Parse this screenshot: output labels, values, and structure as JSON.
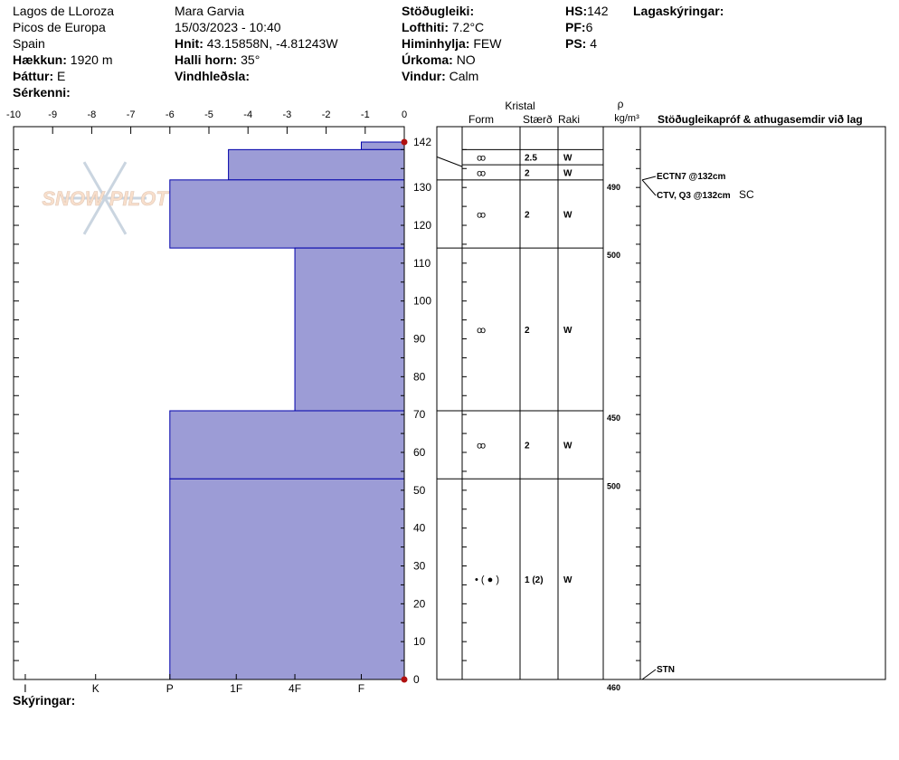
{
  "header": {
    "location": "Lagos de  LLoroza",
    "region": "Picos de Europa",
    "country": "Spain",
    "elevation_label": "Hækkun:",
    "elevation_value": "1920 m",
    "aspect_label": "Þáttur:",
    "aspect_value": "E",
    "features_label": "Sérkenni:",
    "observer": "Mara Garvia",
    "datetime": "15/03/2023 - 10:40",
    "coords_label": "Hnit:",
    "coords_value": "43.15858N, -4.81243W",
    "slope_label": "Halli horn:",
    "slope_value": "35°",
    "wind_loading_label": "Vindhleðsla:",
    "stability_label": "Stöðugleiki:",
    "air_temp_label": "Lofthiti:",
    "air_temp_value": "7.2°C",
    "sky_label": "Himinhylja:",
    "sky_value": "FEW",
    "precip_label": "Úrkoma:",
    "precip_value": "NO",
    "wind_label": "Vindur:",
    "wind_value": "Calm",
    "hs_label": "HS:",
    "hs_value": "142",
    "pf_label": "PF:",
    "pf_value": "6",
    "ps_label": "PS:",
    "ps_value": "4",
    "layer_notes_label": "Lagaskýringar:"
  },
  "footer": {
    "legend_label": "Skýringar:"
  },
  "watermark": "SNOW PILOT",
  "colors": {
    "fill": "#9c9cd6",
    "edge": "#0000aa",
    "marker": "#b01010"
  },
  "chart_data": {
    "type": "bar",
    "hardness_axis": {
      "ticks": [
        "-10",
        "-9",
        "-8",
        "-7",
        "-6",
        "-5",
        "-4",
        "-3",
        "-2",
        "-1",
        "0"
      ],
      "categories": [
        "I",
        "K",
        "P",
        "1F",
        "4F",
        "F"
      ]
    },
    "depth_axis": {
      "ticks": [
        "0",
        "10",
        "20",
        "30",
        "40",
        "50",
        "60",
        "70",
        "80",
        "90",
        "100",
        "110",
        "120",
        "130",
        "140"
      ],
      "top_label": "142",
      "range": [
        0,
        142
      ]
    },
    "hand_hardness_profile": [
      {
        "top": 142,
        "bottom": 140,
        "hardness": -1.1
      },
      {
        "top": 140,
        "bottom": 132,
        "hardness": -4.5
      },
      {
        "top": 132,
        "bottom": 114,
        "hardness": -6
      },
      {
        "top": 114,
        "bottom": 71,
        "hardness": -2.8
      },
      {
        "top": 71,
        "bottom": 53,
        "hardness": -6
      },
      {
        "top": 53,
        "bottom": 0,
        "hardness": -6
      }
    ],
    "columns": {
      "crystal": "Kristal",
      "form": "Form",
      "size": "Stærð",
      "moisture": "Raki",
      "rho": "ρ",
      "density_unit": "kg/m³",
      "tests": "Stöðugleikapróf & athugasemdir við lag"
    },
    "layers": [
      {
        "top": 140,
        "bottom": 136,
        "form": "ꝏ",
        "size": "2.5",
        "moisture": "W"
      },
      {
        "top": 136,
        "bottom": 132,
        "form": "ꝏ",
        "size": "2",
        "moisture": "W"
      },
      {
        "top": 132,
        "bottom": 114,
        "form": "ꝏ",
        "size": "2",
        "moisture": "W"
      },
      {
        "top": 114,
        "bottom": 71,
        "form": "ꝏ",
        "size": "2",
        "moisture": "W"
      },
      {
        "top": 71,
        "bottom": 53,
        "form": "ꝏ",
        "size": "2",
        "moisture": "W"
      },
      {
        "top": 53,
        "bottom": 0,
        "form": "• ( ● )",
        "size": "1 (2)",
        "moisture": "W"
      }
    ],
    "densities": [
      {
        "depth": 132,
        "value": "490"
      },
      {
        "depth": 114,
        "value": "500"
      },
      {
        "depth": 71,
        "value": "450"
      },
      {
        "depth": 53,
        "value": "500"
      },
      {
        "depth": 0,
        "value": "460"
      }
    ],
    "tests": [
      {
        "depth": 132,
        "text": "ECTN7 @132cm",
        "extra": ""
      },
      {
        "depth": 132,
        "text": "CTV, Q3 @132cm",
        "extra": "SC"
      },
      {
        "depth": 0,
        "text": "STN",
        "extra": ""
      }
    ]
  }
}
